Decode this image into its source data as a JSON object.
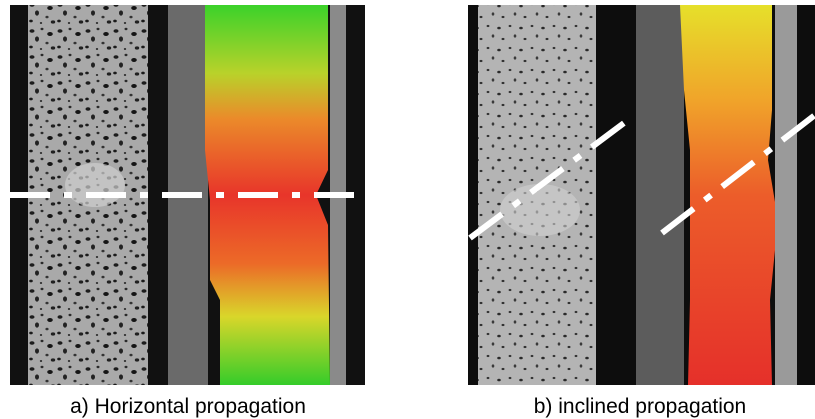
{
  "captions": {
    "a": "a) Horizontal propagation",
    "b": "b) inclined propagation"
  }
}
